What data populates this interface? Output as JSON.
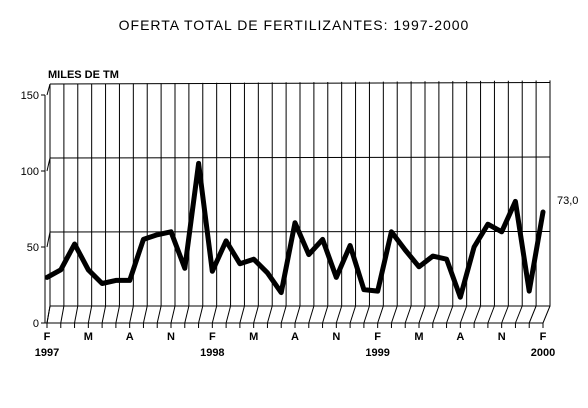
{
  "chart_data": {
    "type": "line",
    "title": "OFERTA TOTAL DE FERTILIZANTES: 1997-2000",
    "ylabel": "MILES DE TM",
    "xlabel": "",
    "ylim": [
      0,
      150
    ],
    "yticks": [
      "0",
      "50",
      "100",
      "150"
    ],
    "grid": true,
    "x": [
      "1997-02",
      "1997-03",
      "1997-04",
      "1997-05",
      "1997-06",
      "1997-07",
      "1997-08",
      "1997-09",
      "1997-10",
      "1997-11",
      "1997-12",
      "1998-01",
      "1998-02",
      "1998-03",
      "1998-04",
      "1998-05",
      "1998-06",
      "1998-07",
      "1998-08",
      "1998-09",
      "1998-10",
      "1998-11",
      "1998-12",
      "1999-01",
      "1999-02",
      "1999-03",
      "1999-04",
      "1999-05",
      "1999-06",
      "1999-07",
      "1999-08",
      "1999-09",
      "1999-10",
      "1999-11",
      "1999-12",
      "2000-01",
      "2000-02"
    ],
    "x_tick_labels": [
      {
        "index": 0,
        "month": "F",
        "year": "1997"
      },
      {
        "index": 3,
        "month": "M",
        "year": ""
      },
      {
        "index": 6,
        "month": "A",
        "year": ""
      },
      {
        "index": 9,
        "month": "N",
        "year": ""
      },
      {
        "index": 12,
        "month": "F",
        "year": "1998"
      },
      {
        "index": 15,
        "month": "M",
        "year": ""
      },
      {
        "index": 18,
        "month": "A",
        "year": ""
      },
      {
        "index": 21,
        "month": "N",
        "year": ""
      },
      {
        "index": 24,
        "month": "F",
        "year": "1999"
      },
      {
        "index": 27,
        "month": "M",
        "year": ""
      },
      {
        "index": 30,
        "month": "A",
        "year": ""
      },
      {
        "index": 33,
        "month": "N",
        "year": ""
      },
      {
        "index": 36,
        "month": "F",
        "year": "2000"
      }
    ],
    "series": [
      {
        "values": [
          30,
          35,
          52,
          35,
          26,
          28,
          28,
          55,
          58,
          60,
          36,
          105,
          34,
          54,
          39,
          42,
          33,
          20,
          66,
          45,
          55,
          30,
          51,
          22,
          21,
          60,
          48,
          37,
          44,
          42,
          17,
          50,
          65,
          60,
          80,
          21,
          73
        ],
        "color": "#000000"
      }
    ],
    "annotations": [
      {
        "text": "73,0",
        "index": 36
      }
    ]
  }
}
